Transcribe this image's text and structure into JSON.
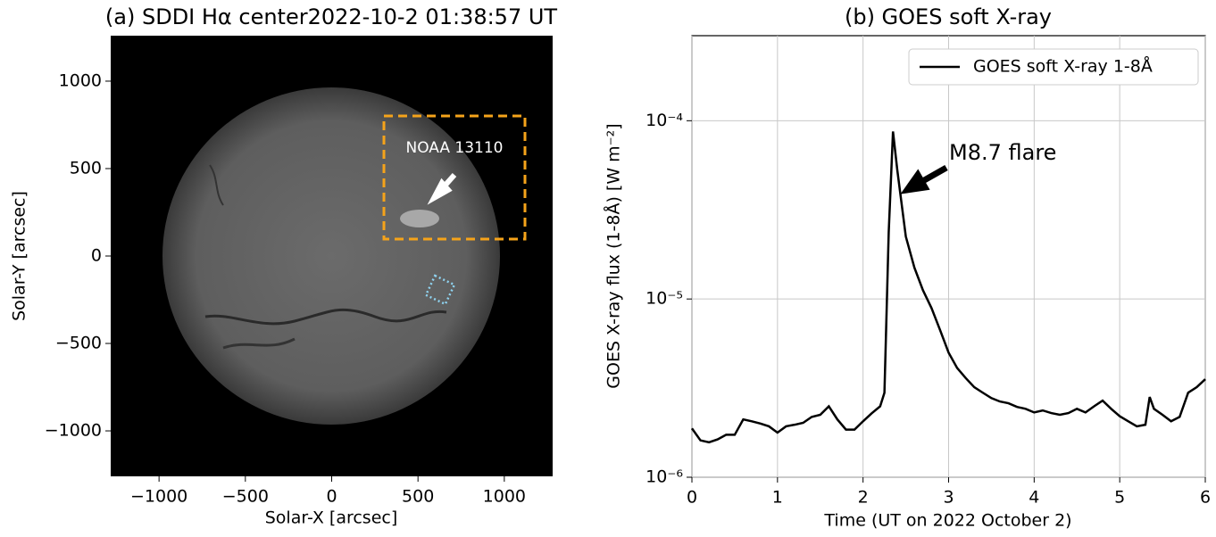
{
  "chart_data": [
    {
      "type": "image",
      "title": "(a) SDDI Hα center2022-10-2 01:38:57 UT",
      "x_label": "Solar-X [arcsec]",
      "y_label": "Solar-Y [arcsec]",
      "xlim": [
        -1280,
        1280
      ],
      "ylim": [
        -1260,
        1260
      ],
      "xticks": [
        {
          "value": -1000,
          "label": "−1000"
        },
        {
          "value": -500,
          "label": "−500"
        },
        0,
        500,
        1000
      ],
      "yticks": [
        {
          "value": -1000,
          "label": "−1000"
        },
        {
          "value": -500,
          "label": "−500"
        },
        0,
        500,
        1000
      ],
      "annotation": "NOAA 13110"
    },
    {
      "type": "line",
      "title": "(b) GOES soft X-ray",
      "x_label": "Time (UT on 2022 October 2)",
      "y_label": "GOES X-ray flux (1-8Å) [W m⁻²]",
      "xlim": [
        0,
        6
      ],
      "ylim": [
        1e-06,
        0.0003
      ],
      "yscale": "log",
      "grid": true,
      "legend": "upper right",
      "xticks": [
        0,
        1,
        2,
        3,
        4,
        5,
        6
      ],
      "yticks": [
        {
          "value": 1e-06,
          "label": "10⁻⁶"
        },
        {
          "value": 1e-05,
          "label": "10⁻⁵"
        },
        {
          "value": 0.0001,
          "label": "10⁻⁴"
        }
      ],
      "x": [
        0,
        0.1,
        0.2,
        0.3,
        0.4,
        0.5,
        0.6,
        0.7,
        0.8,
        0.9,
        1.0,
        1.1,
        1.2,
        1.3,
        1.4,
        1.5,
        1.6,
        1.7,
        1.8,
        1.9,
        2.0,
        2.1,
        2.2,
        2.25,
        2.3,
        2.35,
        2.4,
        2.5,
        2.6,
        2.7,
        2.8,
        2.9,
        3.0,
        3.1,
        3.2,
        3.3,
        3.4,
        3.5,
        3.6,
        3.7,
        3.8,
        3.9,
        4.0,
        4.1,
        4.2,
        4.3,
        4.4,
        4.5,
        4.6,
        4.7,
        4.8,
        4.9,
        5.0,
        5.1,
        5.2,
        5.3,
        5.35,
        5.4,
        5.5,
        5.6,
        5.7,
        5.8,
        5.9,
        6.0
      ],
      "series": [
        {
          "name": "GOES soft X-ray 1-8Å",
          "color": "#000000",
          "values": [
            1.88e-06,
            1.61e-06,
            1.57e-06,
            1.63e-06,
            1.73e-06,
            1.73e-06,
            2.11e-06,
            2.06e-06,
            2e-06,
            1.93e-06,
            1.78e-06,
            1.93e-06,
            1.97e-06,
            2.02e-06,
            2.18e-06,
            2.24e-06,
            2.5e-06,
            2.11e-06,
            1.85e-06,
            1.85e-06,
            2.06e-06,
            2.28e-06,
            2.5e-06,
            2.98e-06,
            2.37e-05,
            8.7e-05,
            5.3e-05,
            2.24e-05,
            1.5e-05,
            1.12e-05,
            8.9e-06,
            6.7e-06,
            5e-06,
            4.1e-06,
            3.6e-06,
            3.2e-06,
            2.98e-06,
            2.78e-06,
            2.66e-06,
            2.6e-06,
            2.48e-06,
            2.42e-06,
            2.31e-06,
            2.37e-06,
            2.29e-06,
            2.24e-06,
            2.29e-06,
            2.42e-06,
            2.31e-06,
            2.5e-06,
            2.69e-06,
            2.42e-06,
            2.2e-06,
            2.06e-06,
            1.93e-06,
            1.97e-06,
            2.82e-06,
            2.42e-06,
            2.24e-06,
            2.06e-06,
            2.18e-06,
            2.98e-06,
            3.2e-06,
            3.55e-06
          ]
        }
      ],
      "annotation": "M8.7 flare"
    }
  ]
}
